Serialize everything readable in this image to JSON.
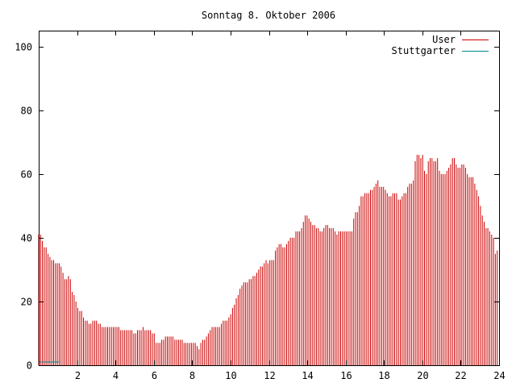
{
  "chart_data": {
    "type": "bar",
    "title": "Sonntag 8. Oktober 2006",
    "xlabel": "",
    "ylabel": "",
    "xlim": [
      0,
      24
    ],
    "ylim": [
      0,
      105
    ],
    "x_ticks": [
      2,
      4,
      6,
      8,
      10,
      12,
      14,
      16,
      18,
      20,
      22,
      24
    ],
    "x_tick_labels": [
      "2",
      "4",
      "6",
      "8",
      "10",
      "12",
      "14",
      "16",
      "18",
      "20",
      "22",
      "24"
    ],
    "y_ticks": [
      0,
      20,
      40,
      60,
      80,
      100
    ],
    "y_tick_labels": [
      "0",
      "20",
      "40",
      "60",
      "80",
      "100"
    ],
    "grid": false,
    "legend_position": "top-right",
    "x_step_hours": 0.0833,
    "series": [
      {
        "name": "User",
        "color": "#cc0000",
        "values": [
          41,
          41,
          39,
          37,
          37,
          35,
          34,
          33,
          33,
          32,
          32,
          32,
          31,
          29,
          27,
          27,
          28,
          27,
          23,
          22,
          20,
          18,
          17,
          17,
          15,
          14,
          14,
          13,
          13,
          14,
          14,
          14,
          13,
          13,
          12,
          12,
          12,
          12,
          12,
          12,
          12,
          12,
          12,
          12,
          11,
          11,
          11,
          11,
          11,
          11,
          11,
          10,
          10,
          11,
          11,
          11,
          12,
          11,
          11,
          11,
          11,
          10,
          10,
          7,
          7,
          7,
          8,
          8,
          9,
          9,
          9,
          9,
          9,
          8,
          8,
          8,
          8,
          8,
          7,
          7,
          7,
          7,
          7,
          7,
          7,
          6,
          5,
          7,
          8,
          8,
          9,
          10,
          11,
          12,
          12,
          12,
          12,
          12,
          13,
          14,
          14,
          14,
          15,
          16,
          18,
          19,
          21,
          22,
          24,
          25,
          26,
          26,
          26,
          27,
          27,
          28,
          28,
          29,
          30,
          31,
          31,
          32,
          33,
          32,
          33,
          33,
          33,
          36,
          37,
          38,
          38,
          37,
          37,
          38,
          39,
          40,
          40,
          40,
          42,
          42,
          42,
          43,
          45,
          47,
          47,
          46,
          45,
          44,
          44,
          43,
          43,
          42,
          42,
          43,
          44,
          44,
          43,
          43,
          43,
          42,
          41,
          42,
          42,
          42,
          42,
          42,
          42,
          42,
          42,
          46,
          48,
          48,
          50,
          53,
          53,
          54,
          54,
          54,
          55,
          55,
          56,
          57,
          58,
          56,
          56,
          56,
          55,
          54,
          53,
          53,
          54,
          54,
          54,
          52,
          52,
          53,
          54,
          54,
          56,
          57,
          57,
          58,
          64,
          66,
          66,
          65,
          66,
          61,
          60,
          64,
          65,
          65,
          64,
          64,
          65,
          61,
          60,
          60,
          60,
          61,
          62,
          63,
          65,
          65,
          63,
          62,
          62,
          63,
          63,
          62,
          60,
          59,
          59,
          59,
          57,
          55,
          53,
          50,
          47,
          45,
          43,
          43,
          42,
          41,
          40,
          35,
          36
        ]
      },
      {
        "name": "Stuttgarter",
        "color": "#008888",
        "values": [
          1,
          1,
          1,
          1,
          1,
          1,
          1,
          1,
          1,
          1,
          1,
          1,
          1,
          1,
          0,
          0,
          0,
          0,
          0,
          0,
          0,
          0,
          0,
          0,
          0,
          0,
          0,
          0,
          0,
          0,
          0,
          0,
          0,
          0,
          0,
          0,
          0,
          0,
          0,
          0,
          0,
          0,
          0,
          0,
          0,
          0,
          0,
          0,
          0,
          0,
          0,
          0,
          0,
          0,
          0,
          0,
          0,
          0,
          0,
          0,
          0,
          0,
          0,
          0,
          0,
          0,
          0,
          0,
          0,
          0,
          0,
          0,
          0,
          0,
          0,
          0,
          0,
          0,
          0,
          0,
          0,
          0,
          0,
          0,
          0,
          0,
          0,
          0,
          0,
          0,
          0,
          0,
          0,
          0,
          0,
          0,
          0,
          0,
          0,
          0,
          0,
          0,
          0,
          0,
          0,
          0,
          0,
          0,
          0,
          0,
          0,
          0,
          0,
          0,
          0,
          0,
          0,
          0,
          0,
          0,
          0,
          0,
          0,
          0,
          0,
          0,
          0,
          0,
          0,
          0,
          0,
          0,
          0,
          0,
          0,
          0,
          0,
          0,
          0,
          0,
          0,
          0,
          0,
          0,
          0,
          0,
          0,
          0,
          0,
          0,
          0,
          0,
          0,
          0,
          0,
          0,
          0,
          0,
          0,
          0,
          0,
          0,
          0,
          0,
          0,
          0,
          0,
          0,
          0,
          0,
          0,
          0,
          0,
          0,
          0,
          0,
          0,
          0,
          0,
          0,
          0,
          0,
          0,
          0,
          0,
          0,
          0,
          0,
          0,
          0,
          0,
          0,
          0,
          0,
          0,
          0,
          0,
          0,
          0,
          0,
          0,
          0,
          0,
          0,
          0,
          0,
          0,
          0,
          0,
          0,
          0,
          0,
          0,
          0,
          0,
          0,
          0,
          0,
          0,
          0,
          0,
          0,
          0,
          0,
          0,
          0,
          0,
          0,
          0,
          0,
          0,
          0,
          0,
          0,
          0,
          0,
          0,
          0,
          0,
          0,
          0,
          0,
          0,
          0,
          0,
          0,
          0,
          0,
          0,
          0,
          0,
          0,
          0,
          0,
          0,
          0,
          0,
          0,
          0,
          0,
          0,
          0,
          0,
          0,
          0,
          0,
          0,
          0,
          0,
          0,
          0,
          0,
          0,
          0,
          0,
          0,
          0,
          0,
          0,
          0,
          0,
          0,
          0,
          0,
          0,
          0,
          0,
          0,
          0,
          0,
          0,
          0,
          0,
          0,
          0,
          0,
          0,
          0,
          0,
          0,
          0,
          0,
          0,
          0,
          0,
          0
        ]
      }
    ]
  }
}
